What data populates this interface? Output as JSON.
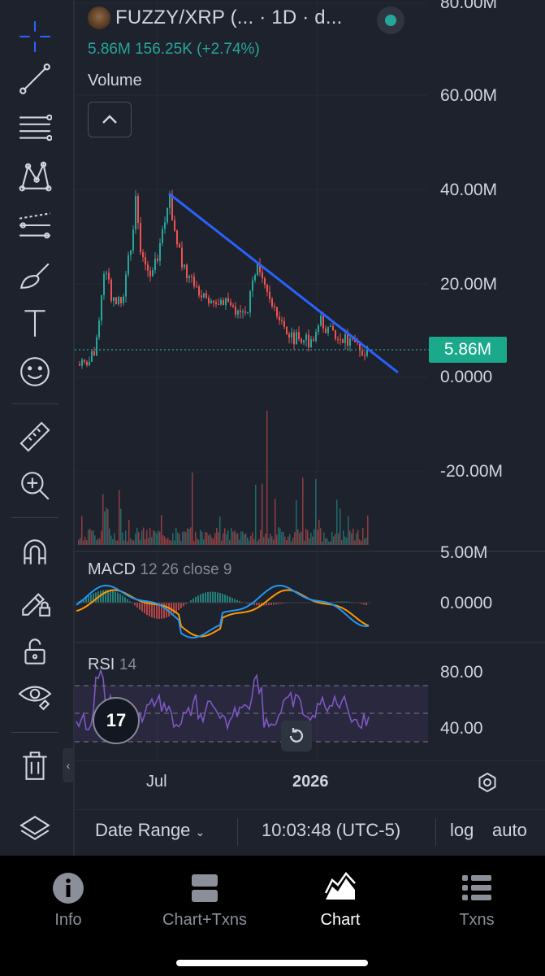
{
  "header": {
    "title": "FUZZY/XRP (... · 1D · d...",
    "ohlc": "5.86M  156.25K (+2.74%)"
  },
  "panes": {
    "volume_label": "Volume",
    "macd_label": "MACD",
    "macd_params": "12 26 close 9",
    "rsi_label": "RSI",
    "rsi_params": "14"
  },
  "price_axis": {
    "labels": [
      "80.00M",
      "60.00M",
      "40.00M",
      "20.00M",
      "0.0000",
      "-20.00M",
      "5.00M",
      "0.0000",
      "80.00",
      "40.00"
    ],
    "current_price": "5.86M"
  },
  "time_axis": {
    "labels": [
      "Jul",
      "2026"
    ]
  },
  "bottom_bar": {
    "date_range": "Date Range",
    "clock": "10:03:48 (UTC-5)",
    "log": "log",
    "auto": "auto"
  },
  "tabs": [
    {
      "label": "Info",
      "icon": "info-icon"
    },
    {
      "label": "Chart+Txns",
      "icon": "split-view-icon"
    },
    {
      "label": "Chart",
      "icon": "area-chart-icon",
      "active": true
    },
    {
      "label": "Txns",
      "icon": "list-icon"
    }
  ],
  "toolbar_icons": [
    "crosshair-icon",
    "trend-line-icon",
    "fib-retracement-icon",
    "pattern-icon",
    "parallel-channel-icon",
    "brush-icon",
    "text-icon",
    "emoji-icon",
    "ruler-icon",
    "zoom-in-icon",
    "magnet-icon",
    "lock-drawing-icon",
    "unlock-icon",
    "eye-icon",
    "trash-icon",
    "layers-icon"
  ],
  "colors": {
    "up": "#26a69a",
    "down": "#ef5350",
    "trendline": "#2962ff",
    "macd": "#2196f3",
    "signal": "#ff9800",
    "rsi": "#7e57c2",
    "background": "#1e222d"
  }
}
